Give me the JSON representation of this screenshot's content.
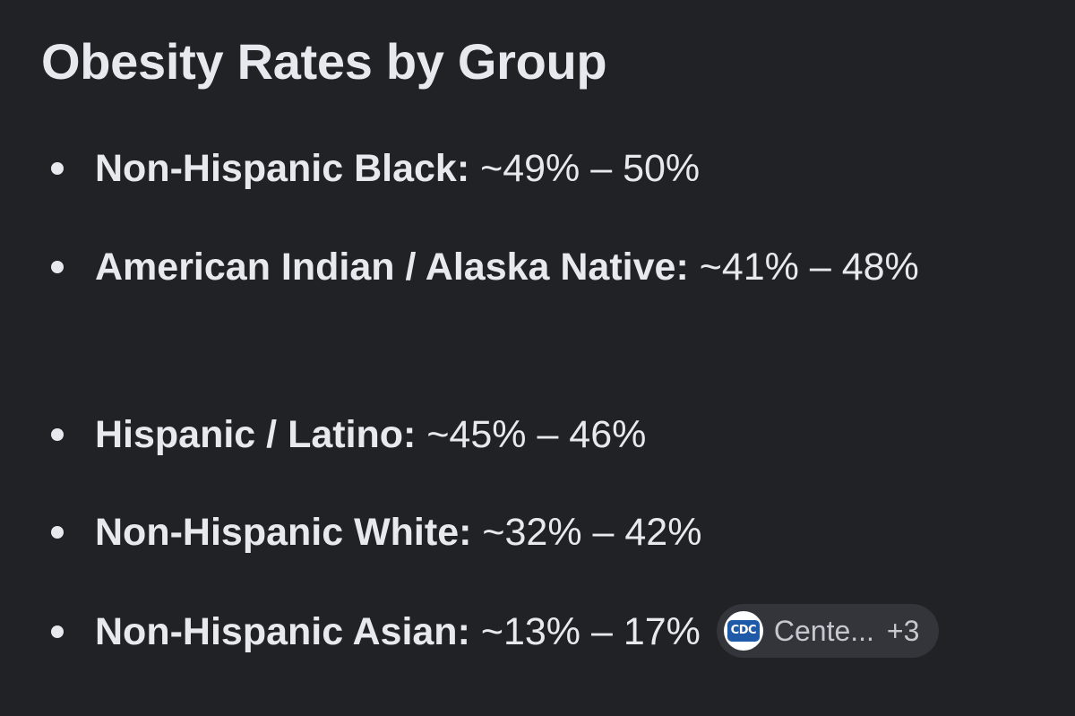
{
  "heading": "Obesity Rates by Group",
  "items": [
    {
      "label": "Non-Hispanic Black:",
      "value": " ~49% – 50%"
    },
    {
      "label": "American Indian / Alaska Native:",
      "value": " ~41% – 48%"
    },
    {
      "label": "Hispanic / Latino:",
      "value": " ~45% – 46%"
    },
    {
      "label": "Non-Hispanic White:",
      "value": " ~32% – 42%"
    },
    {
      "label": "Non-Hispanic Asian:",
      "value": " ~13% – 17%"
    }
  ],
  "source_chip": {
    "icon": "cdc-logo-icon",
    "icon_text": "CDC",
    "label": "Cente...",
    "more_count": "+3"
  },
  "colors": {
    "background": "#212226",
    "text": "#e8e9ee",
    "chip_background": "#33353b",
    "cdc_blue": "#1e5aa8"
  }
}
